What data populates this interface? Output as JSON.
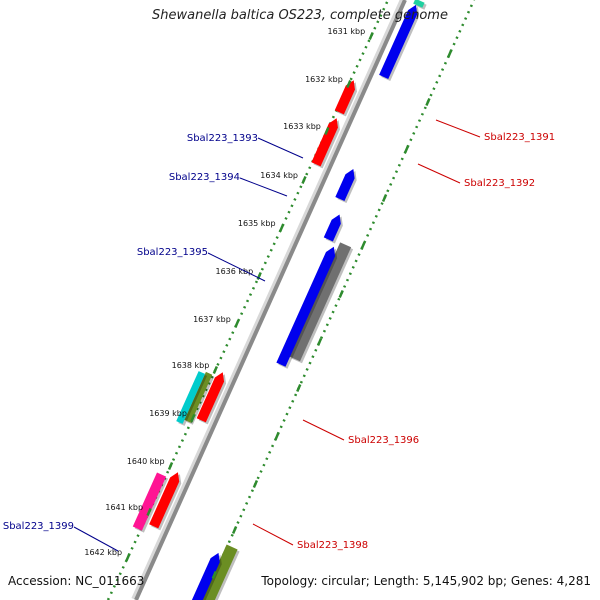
{
  "title": "Shewanella baltica OS223, complete genome",
  "footer": {
    "accession": "Accession: NC_011663",
    "summary": "Topology: circular; Length: 5,145,902 bp; Genes: 4,281"
  },
  "colors": {
    "backbone": "#8a8a8a",
    "tick_dots": "#2e8b2e",
    "forward_label": "#cc0000",
    "reverse_label": "#00008b",
    "gene_red": "#ff0000",
    "gene_blue": "#0000ee",
    "gene_gray": "#707070",
    "gene_olive": "#6b8e23",
    "gene_cyan": "#00cccc",
    "gene_pink": "#ff1493",
    "gene_teal": "#20d0a0"
  },
  "ticks": [
    {
      "label": "1631 kbp"
    },
    {
      "label": "1632 kbp"
    },
    {
      "label": "1633 kbp"
    },
    {
      "label": "1634 kbp"
    },
    {
      "label": "1635 kbp"
    },
    {
      "label": "1636 kbp"
    },
    {
      "label": "1637 kbp"
    },
    {
      "label": "1638 kbp"
    },
    {
      "label": "1639 kbp"
    },
    {
      "label": "1640 kbp"
    },
    {
      "label": "1641 kbp"
    },
    {
      "label": "1642 kbp"
    }
  ],
  "gene_labels": [
    {
      "label": "Sbal223_1391",
      "strand": "forward"
    },
    {
      "label": "Sbal223_1392",
      "strand": "forward"
    },
    {
      "label": "Sbal223_1393",
      "strand": "reverse"
    },
    {
      "label": "Sbal223_1394",
      "strand": "reverse"
    },
    {
      "label": "Sbal223_1395",
      "strand": "reverse"
    },
    {
      "label": "Sbal223_1396",
      "strand": "forward"
    },
    {
      "label": "Sbal223_1398",
      "strand": "forward"
    },
    {
      "label": "Sbal223_1399",
      "strand": "reverse"
    }
  ]
}
